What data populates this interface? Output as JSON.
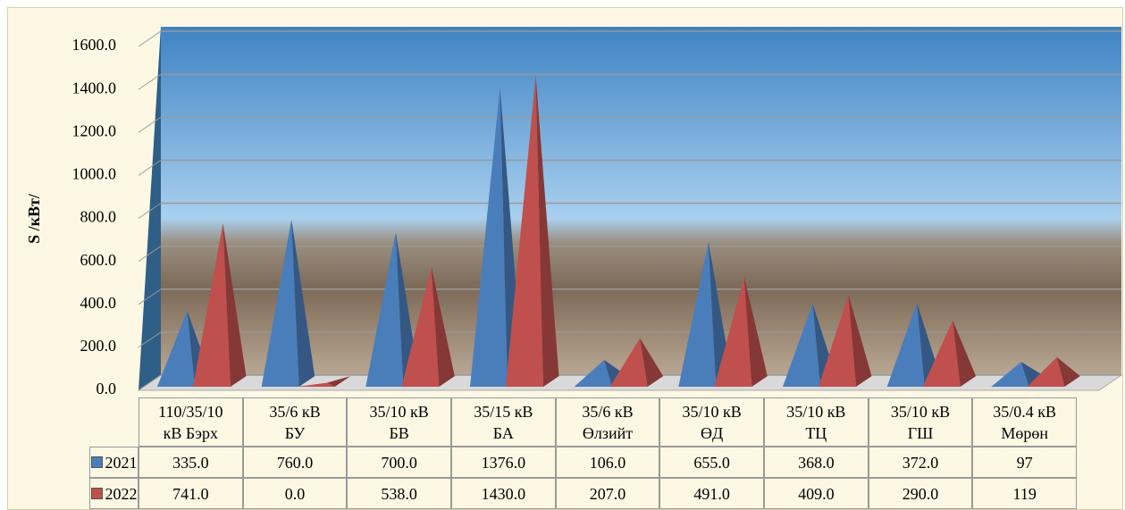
{
  "chart_data": {
    "type": "pyramid",
    "y_label": "S /кВт/",
    "categories": [
      "110/35/10\nкВ Бэрх",
      "35/6 кВ\nБУ",
      "35/10 кВ\nБВ",
      "35/15 кВ\nБА",
      "35/6 кВ\nӨлзийт",
      "35/10 кВ\nӨД",
      "35/10 кВ\nТЦ",
      "35/10 кВ\nГШ",
      "35/0.4 кВ\nМөрөн"
    ],
    "series": [
      {
        "name": "2021",
        "color": "#4a7ebb",
        "values": [
          335,
          760,
          700,
          1376,
          106,
          655,
          368,
          372,
          97
        ],
        "value_labels": [
          "335.0",
          "760.0",
          "700.0",
          "1376.0",
          "106.0",
          "655.0",
          "368.0",
          "372.0",
          "97"
        ]
      },
      {
        "name": "2022",
        "color": "#c0504d",
        "values": [
          741,
          0,
          538,
          1430,
          207,
          491,
          409,
          290,
          119
        ],
        "value_labels": [
          "741.0",
          "0.0",
          "538.0",
          "1430.0",
          "207.0",
          "491.0",
          "409.0",
          "290.0",
          "119"
        ]
      }
    ],
    "ylim": [
      0,
      1600
    ],
    "yticks": [
      {
        "value": 0,
        "label": "0.0"
      },
      {
        "value": 200,
        "label": "200.0"
      },
      {
        "value": 400,
        "label": "400.0"
      },
      {
        "value": 600,
        "label": "600.0"
      },
      {
        "value": 800,
        "label": "800.0"
      },
      {
        "value": 1000,
        "label": "1000.0"
      },
      {
        "value": 1200,
        "label": "1200.0"
      },
      {
        "value": 1400,
        "label": "1400.0"
      },
      {
        "value": 1600,
        "label": "1600.0"
      }
    ],
    "grid": true
  }
}
